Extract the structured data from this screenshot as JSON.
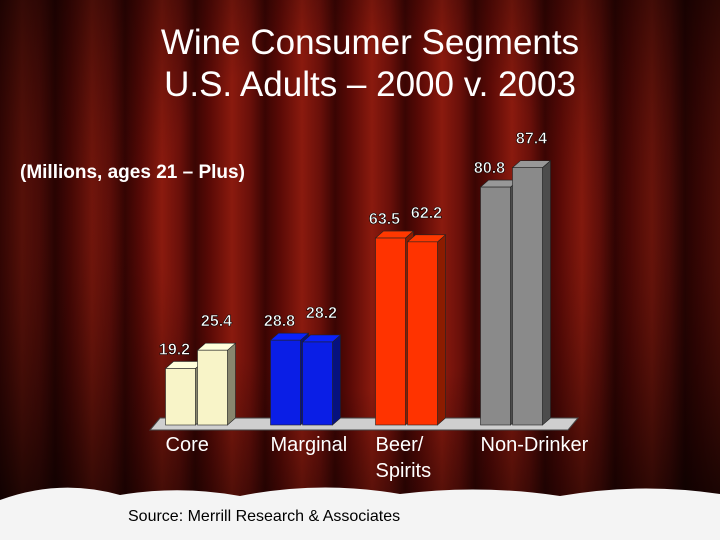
{
  "chart_data": {
    "type": "bar",
    "title": "Wine Consumer Segments\nU.S. Adults – 2000 v. 2003",
    "subtitle": "(Millions, ages 21 – Plus)",
    "categories": [
      "Core",
      "Marginal",
      "Beer/\nSpirits",
      "Non-Drinker"
    ],
    "colors": [
      "#f8f4c8",
      "#0a1ee6",
      "#ff3300",
      "#8a8a8a"
    ],
    "series": [
      {
        "values": [
          19.2,
          28.8,
          63.5,
          80.8
        ]
      },
      {
        "values": [
          25.4,
          28.2,
          62.2,
          87.4
        ]
      }
    ],
    "ylim": [
      0,
      90
    ],
    "source": "Source: Merrill Research & Associates"
  }
}
